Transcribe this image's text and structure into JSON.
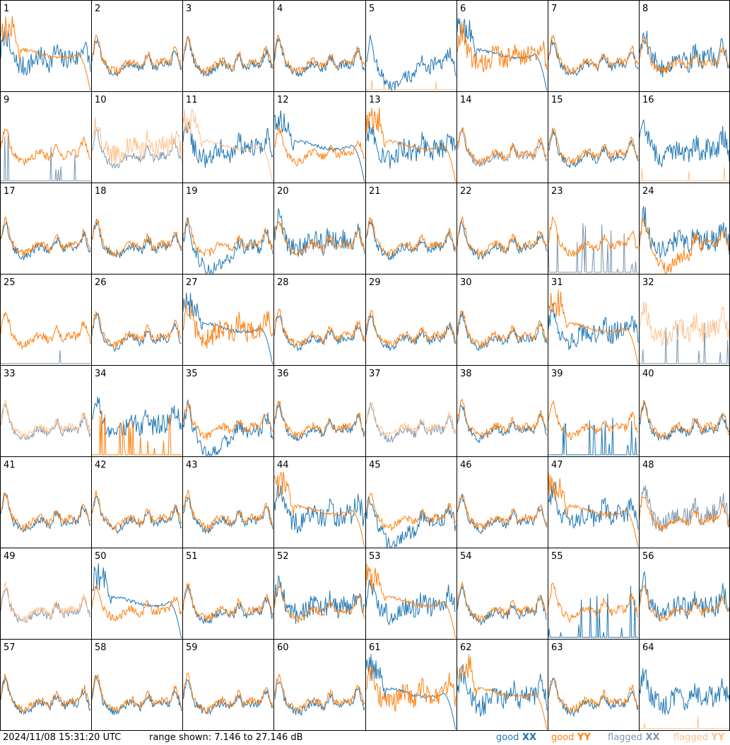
{
  "footer": {
    "timestamp": "2024/11/08 15:31:20 UTC",
    "range": "range shown: 7.146 to 27.146 dB"
  },
  "legend": [
    {
      "key": "gxx",
      "pol": "good",
      "name": "XX",
      "color": "#1f77b4"
    },
    {
      "key": "gyy",
      "pol": "good",
      "name": "YY",
      "color": "#ff7f0e"
    },
    {
      "key": "fxx",
      "pol": "flagged",
      "name": "XX",
      "color": "#7a96b2"
    },
    {
      "key": "fyy",
      "pol": "flagged",
      "name": "YY",
      "color": "#ffc08c"
    }
  ],
  "chart_data": {
    "type": "line",
    "ylim": [
      7.146,
      27.146
    ],
    "y_unit": "dB",
    "panels": [
      {
        "label": "1",
        "xx": {
          "status": "good",
          "shape": "noisy"
        },
        "yy": {
          "status": "good",
          "shape": "falloff"
        }
      },
      {
        "label": "2",
        "xx": {
          "status": "good",
          "shape": "normal"
        },
        "yy": {
          "status": "good",
          "shape": "normal"
        }
      },
      {
        "label": "3",
        "xx": {
          "status": "good",
          "shape": "normal"
        },
        "yy": {
          "status": "good",
          "shape": "normal"
        }
      },
      {
        "label": "4",
        "xx": {
          "status": "good",
          "shape": "normal"
        },
        "yy": {
          "status": "good",
          "shape": "normal"
        }
      },
      {
        "label": "5",
        "xx": {
          "status": "good",
          "shape": "dip"
        },
        "yy": {
          "status": "flagged",
          "shape": "flat_bottom"
        }
      },
      {
        "label": "6",
        "xx": {
          "status": "good",
          "shape": "falloff"
        },
        "yy": {
          "status": "good",
          "shape": "noisy"
        }
      },
      {
        "label": "7",
        "xx": {
          "status": "good",
          "shape": "normal"
        },
        "yy": {
          "status": "good",
          "shape": "normal"
        }
      },
      {
        "label": "8",
        "xx": {
          "status": "good",
          "shape": "noisy"
        },
        "yy": {
          "status": "good",
          "shape": "normal"
        }
      },
      {
        "label": "9",
        "xx": {
          "status": "flagged",
          "shape": "spikes"
        },
        "yy": {
          "status": "good",
          "shape": "normal"
        }
      },
      {
        "label": "10",
        "xx": {
          "status": "flagged",
          "shape": "normal"
        },
        "yy": {
          "status": "flagged",
          "shape": "noisy"
        }
      },
      {
        "label": "11",
        "xx": {
          "status": "good",
          "shape": "noisy"
        },
        "yy": {
          "status": "flagged",
          "shape": "falloff"
        }
      },
      {
        "label": "12",
        "xx": {
          "status": "good",
          "shape": "falloff"
        },
        "yy": {
          "status": "good",
          "shape": "normal"
        }
      },
      {
        "label": "13",
        "xx": {
          "status": "good",
          "shape": "noisy"
        },
        "yy": {
          "status": "good",
          "shape": "falloff"
        }
      },
      {
        "label": "14",
        "xx": {
          "status": "flagged",
          "shape": "normal"
        },
        "yy": {
          "status": "good",
          "shape": "normal"
        }
      },
      {
        "label": "15",
        "xx": {
          "status": "good",
          "shape": "normal"
        },
        "yy": {
          "status": "good",
          "shape": "normal"
        }
      },
      {
        "label": "16",
        "xx": {
          "status": "good",
          "shape": "noisy"
        },
        "yy": {
          "status": "flagged",
          "shape": "flat_bottom"
        }
      },
      {
        "label": "17",
        "xx": {
          "status": "good",
          "shape": "normal"
        },
        "yy": {
          "status": "good",
          "shape": "normal"
        }
      },
      {
        "label": "18",
        "xx": {
          "status": "good",
          "shape": "normal"
        },
        "yy": {
          "status": "good",
          "shape": "normal"
        }
      },
      {
        "label": "19",
        "xx": {
          "status": "good",
          "shape": "dip"
        },
        "yy": {
          "status": "good",
          "shape": "normal"
        }
      },
      {
        "label": "20",
        "xx": {
          "status": "good",
          "shape": "noisy"
        },
        "yy": {
          "status": "good",
          "shape": "normal"
        }
      },
      {
        "label": "21",
        "xx": {
          "status": "good",
          "shape": "normal"
        },
        "yy": {
          "status": "good",
          "shape": "normal"
        }
      },
      {
        "label": "22",
        "xx": {
          "status": "good",
          "shape": "normal"
        },
        "yy": {
          "status": "good",
          "shape": "normal"
        }
      },
      {
        "label": "23",
        "xx": {
          "status": "flagged",
          "shape": "spikes"
        },
        "yy": {
          "status": "good",
          "shape": "normal"
        }
      },
      {
        "label": "24",
        "xx": {
          "status": "good",
          "shape": "noisy"
        },
        "yy": {
          "status": "good",
          "shape": "dip"
        }
      },
      {
        "label": "25",
        "xx": {
          "status": "flagged",
          "shape": "flat_bottom"
        },
        "yy": {
          "status": "good",
          "shape": "normal"
        }
      },
      {
        "label": "26",
        "xx": {
          "status": "good",
          "shape": "normal"
        },
        "yy": {
          "status": "good",
          "shape": "normal"
        }
      },
      {
        "label": "27",
        "xx": {
          "status": "good",
          "shape": "falloff"
        },
        "yy": {
          "status": "good",
          "shape": "noisy"
        }
      },
      {
        "label": "28",
        "xx": {
          "status": "good",
          "shape": "normal"
        },
        "yy": {
          "status": "good",
          "shape": "normal"
        }
      },
      {
        "label": "29",
        "xx": {
          "status": "good",
          "shape": "normal"
        },
        "yy": {
          "status": "good",
          "shape": "normal"
        }
      },
      {
        "label": "30",
        "xx": {
          "status": "good",
          "shape": "normal"
        },
        "yy": {
          "status": "good",
          "shape": "normal"
        }
      },
      {
        "label": "31",
        "xx": {
          "status": "good",
          "shape": "noisy"
        },
        "yy": {
          "status": "good",
          "shape": "falloff"
        }
      },
      {
        "label": "32",
        "xx": {
          "status": "flagged",
          "shape": "spikes"
        },
        "yy": {
          "status": "flagged",
          "shape": "noisy"
        }
      },
      {
        "label": "33",
        "xx": {
          "status": "flagged",
          "shape": "normal"
        },
        "yy": {
          "status": "flagged",
          "shape": "normal"
        }
      },
      {
        "label": "34",
        "xx": {
          "status": "good",
          "shape": "noisy"
        },
        "yy": {
          "status": "good",
          "shape": "spikes"
        }
      },
      {
        "label": "35",
        "xx": {
          "status": "good",
          "shape": "dip"
        },
        "yy": {
          "status": "good",
          "shape": "normal"
        }
      },
      {
        "label": "36",
        "xx": {
          "status": "good",
          "shape": "normal"
        },
        "yy": {
          "status": "good",
          "shape": "normal"
        }
      },
      {
        "label": "37",
        "xx": {
          "status": "flagged",
          "shape": "normal"
        },
        "yy": {
          "status": "flagged",
          "shape": "normal"
        }
      },
      {
        "label": "38",
        "xx": {
          "status": "good",
          "shape": "normal"
        },
        "yy": {
          "status": "good",
          "shape": "normal"
        }
      },
      {
        "label": "39",
        "xx": {
          "status": "good",
          "shape": "spikes"
        },
        "yy": {
          "status": "good",
          "shape": "normal"
        }
      },
      {
        "label": "40",
        "xx": {
          "status": "good",
          "shape": "normal"
        },
        "yy": {
          "status": "good",
          "shape": "normal"
        }
      },
      {
        "label": "41",
        "xx": {
          "status": "good",
          "shape": "normal"
        },
        "yy": {
          "status": "good",
          "shape": "normal"
        }
      },
      {
        "label": "42",
        "xx": {
          "status": "good",
          "shape": "normal"
        },
        "yy": {
          "status": "good",
          "shape": "normal"
        }
      },
      {
        "label": "43",
        "xx": {
          "status": "good",
          "shape": "normal"
        },
        "yy": {
          "status": "good",
          "shape": "normal"
        }
      },
      {
        "label": "44",
        "xx": {
          "status": "good",
          "shape": "noisy"
        },
        "yy": {
          "status": "good",
          "shape": "falloff"
        }
      },
      {
        "label": "45",
        "xx": {
          "status": "good",
          "shape": "dip"
        },
        "yy": {
          "status": "good",
          "shape": "normal"
        }
      },
      {
        "label": "46",
        "xx": {
          "status": "good",
          "shape": "normal"
        },
        "yy": {
          "status": "good",
          "shape": "normal"
        }
      },
      {
        "label": "47",
        "xx": {
          "status": "good",
          "shape": "noisy"
        },
        "yy": {
          "status": "good",
          "shape": "falloff"
        }
      },
      {
        "label": "48",
        "xx": {
          "status": "flagged",
          "shape": "noisy"
        },
        "yy": {
          "status": "good",
          "shape": "normal"
        }
      },
      {
        "label": "49",
        "xx": {
          "status": "flagged",
          "shape": "normal"
        },
        "yy": {
          "status": "flagged",
          "shape": "normal"
        }
      },
      {
        "label": "50",
        "xx": {
          "status": "good",
          "shape": "falloff"
        },
        "yy": {
          "status": "good",
          "shape": "normal"
        }
      },
      {
        "label": "51",
        "xx": {
          "status": "good",
          "shape": "normal"
        },
        "yy": {
          "status": "good",
          "shape": "normal"
        }
      },
      {
        "label": "52",
        "xx": {
          "status": "good",
          "shape": "noisy"
        },
        "yy": {
          "status": "good",
          "shape": "normal"
        }
      },
      {
        "label": "53",
        "xx": {
          "status": "good",
          "shape": "noisy"
        },
        "yy": {
          "status": "good",
          "shape": "falloff"
        }
      },
      {
        "label": "54",
        "xx": {
          "status": "good",
          "shape": "normal"
        },
        "yy": {
          "status": "good",
          "shape": "normal"
        }
      },
      {
        "label": "55",
        "xx": {
          "status": "good",
          "shape": "spikes"
        },
        "yy": {
          "status": "good",
          "shape": "normal"
        }
      },
      {
        "label": "56",
        "xx": {
          "status": "good",
          "shape": "noisy"
        },
        "yy": {
          "status": "good",
          "shape": "normal"
        }
      },
      {
        "label": "57",
        "xx": {
          "status": "good",
          "shape": "normal"
        },
        "yy": {
          "status": "good",
          "shape": "normal"
        }
      },
      {
        "label": "58",
        "xx": {
          "status": "good",
          "shape": "normal"
        },
        "yy": {
          "status": "good",
          "shape": "normal"
        }
      },
      {
        "label": "59",
        "xx": {
          "status": "good",
          "shape": "normal"
        },
        "yy": {
          "status": "good",
          "shape": "normal"
        }
      },
      {
        "label": "60",
        "xx": {
          "status": "good",
          "shape": "normal"
        },
        "yy": {
          "status": "good",
          "shape": "normal"
        }
      },
      {
        "label": "61",
        "xx": {
          "status": "good",
          "shape": "falloff"
        },
        "yy": {
          "status": "good",
          "shape": "noisy"
        }
      },
      {
        "label": "62",
        "xx": {
          "status": "good",
          "shape": "noisy"
        },
        "yy": {
          "status": "good",
          "shape": "falloff"
        }
      },
      {
        "label": "63",
        "xx": {
          "status": "good",
          "shape": "normal"
        },
        "yy": {
          "status": "good",
          "shape": "normal"
        }
      },
      {
        "label": "64",
        "xx": {
          "status": "good",
          "shape": "noisy"
        },
        "yy": {
          "status": "flagged",
          "shape": "flat_bottom"
        }
      }
    ]
  }
}
